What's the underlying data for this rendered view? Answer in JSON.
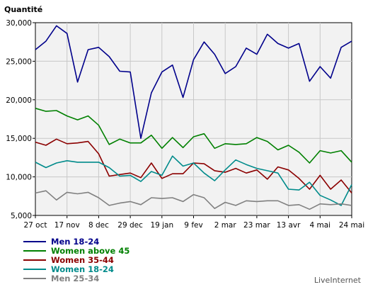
{
  "chart_data": {
    "type": "line",
    "ylabel": "Quantité",
    "ylim": [
      5000,
      30000
    ],
    "yticks": [
      5000,
      10000,
      15000,
      20000,
      25000,
      30000
    ],
    "ytick_labels": [
      "5,000",
      "10,000",
      "15,000",
      "20,000",
      "25,000",
      "30,000"
    ],
    "x_tick_labels": [
      "27 oct",
      "17 nov",
      "8 dec",
      "29 dec",
      "19 jan",
      "9 fev",
      "2 mar",
      "23 mar",
      "13 avr",
      "4 mai",
      "24 mai"
    ],
    "grid": true,
    "legend_position": "bottom-left",
    "branding": "LiveInternet",
    "series": [
      {
        "name": "Men 18-24",
        "color": "#00008b",
        "values": [
          26500,
          27600,
          29600,
          28600,
          22300,
          26500,
          26800,
          25600,
          23700,
          23600,
          15000,
          20900,
          23600,
          24500,
          20300,
          25200,
          27500,
          25900,
          23400,
          24300,
          26700,
          25900,
          28500,
          27300,
          26700,
          27300,
          22400,
          24300,
          22800,
          26800,
          27600
        ]
      },
      {
        "name": "Women above 45",
        "color": "#008000",
        "values": [
          18900,
          18500,
          18600,
          17900,
          17400,
          17900,
          16700,
          14200,
          14900,
          14400,
          14400,
          15400,
          13700,
          15100,
          13800,
          15200,
          15600,
          13700,
          14300,
          14200,
          14300,
          15100,
          14600,
          13500,
          14100,
          13200,
          11800,
          13400,
          13100,
          13400,
          11900
        ]
      },
      {
        "name": "Women 35-44",
        "color": "#8b0000",
        "values": [
          14500,
          14100,
          14900,
          14300,
          14400,
          14600,
          13000,
          10100,
          10300,
          10500,
          9900,
          11800,
          9800,
          10400,
          10400,
          11800,
          11700,
          10800,
          10600,
          11100,
          10500,
          10900,
          9700,
          11300,
          10900,
          9800,
          8400,
          10200,
          8400,
          9600,
          7900
        ]
      },
      {
        "name": "Women 18-24",
        "color": "#008b8b",
        "values": [
          11900,
          11200,
          11800,
          12100,
          11900,
          11900,
          11900,
          11200,
          10100,
          10200,
          9400,
          10700,
          10200,
          12700,
          11400,
          11800,
          10500,
          9500,
          10900,
          12200,
          11600,
          11100,
          10800,
          10500,
          8400,
          8300,
          9300,
          7600,
          7000,
          6300,
          9000
        ]
      },
      {
        "name": "Men 25-34",
        "color": "#808080",
        "values": [
          7900,
          8200,
          7000,
          8000,
          7800,
          8000,
          7300,
          6300,
          6600,
          6800,
          6400,
          7300,
          7200,
          7300,
          6800,
          7700,
          7300,
          5900,
          6700,
          6300,
          6900,
          6800,
          6900,
          6900,
          6300,
          6400,
          5800,
          6500,
          6400,
          6500,
          6300
        ]
      }
    ]
  }
}
